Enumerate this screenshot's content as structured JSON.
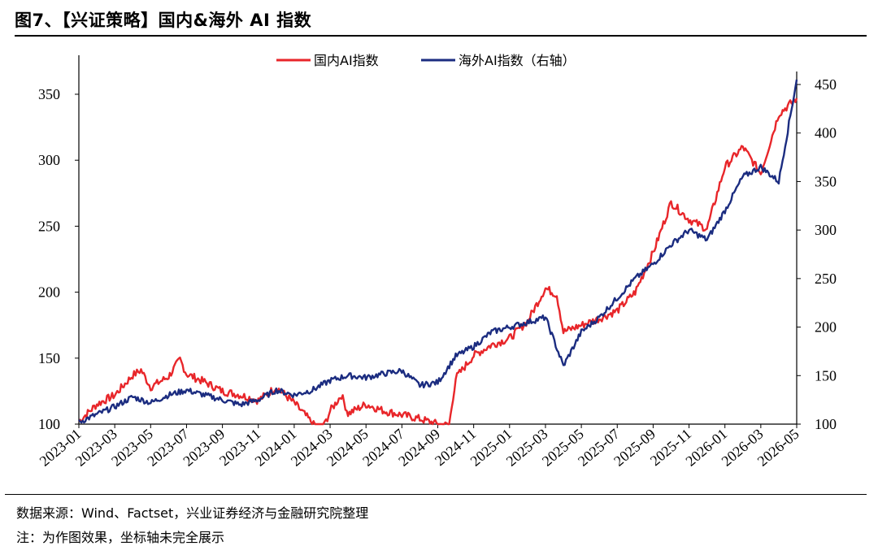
{
  "title": "图7、【兴证策略】国内&海外 AI 指数",
  "source": "数据来源：Wind、Factset，兴业证券经济与金融研究院整理",
  "note": "注：为作图效果，坐标轴未完全展示",
  "chart_data": {
    "type": "line",
    "legend_position": "top-center",
    "grid": false,
    "y_left": {
      "range": [
        100,
        360
      ],
      "ticks": [
        100,
        150,
        200,
        250,
        300,
        350
      ]
    },
    "y_right": {
      "range": [
        100,
        450
      ],
      "ticks": [
        100,
        150,
        200,
        250,
        300,
        350,
        400,
        450
      ]
    },
    "x_ticks": [
      "2023-01",
      "2023-03",
      "2023-05",
      "2023-07",
      "2023-09",
      "2023-11",
      "2024-01",
      "2024-03",
      "2024-05",
      "2024-07",
      "2024-09",
      "2024-11",
      "2025-01",
      "2025-03",
      "2025-05",
      "2025-07",
      "2025-09",
      "2025-11",
      "2026-01",
      "2026-03",
      "2026-05"
    ],
    "series": [
      {
        "name": "国内AI指数",
        "axis": "left",
        "color": "#e8262a",
        "points": [
          [
            "2023-01",
            102
          ],
          [
            "2023-02",
            115
          ],
          [
            "2023-03",
            122
          ],
          [
            "2023-04",
            137
          ],
          [
            "2023-04-15",
            141
          ],
          [
            "2023-05",
            128
          ],
          [
            "2023-06",
            136
          ],
          [
            "2023-06-20",
            149
          ],
          [
            "2023-07",
            138
          ],
          [
            "2023-08",
            132
          ],
          [
            "2023-09",
            125
          ],
          [
            "2023-10",
            122
          ],
          [
            "2023-11",
            118
          ],
          [
            "2023-12",
            128
          ],
          [
            "2024-01",
            116
          ],
          [
            "2024-02",
            101
          ],
          [
            "2024-02-15",
            92
          ],
          [
            "2024-03",
            110
          ],
          [
            "2024-03-20",
            122
          ],
          [
            "2024-04",
            108
          ],
          [
            "2024-05",
            115
          ],
          [
            "2024-06",
            110
          ],
          [
            "2024-07",
            107
          ],
          [
            "2024-08",
            104
          ],
          [
            "2024-09",
            100
          ],
          [
            "2024-09-20",
            99
          ],
          [
            "2024-10",
            135
          ],
          [
            "2024-11",
            152
          ],
          [
            "2024-12",
            160
          ],
          [
            "2025-01",
            165
          ],
          [
            "2025-02",
            178
          ],
          [
            "2025-03",
            203
          ],
          [
            "2025-03-20",
            198
          ],
          [
            "2025-04",
            170
          ],
          [
            "2025-05",
            175
          ],
          [
            "2025-06",
            180
          ],
          [
            "2025-07",
            186
          ],
          [
            "2025-08",
            200
          ],
          [
            "2025-09",
            230
          ],
          [
            "2025-10",
            268
          ],
          [
            "2025-11",
            255
          ],
          [
            "2025-12",
            248
          ],
          [
            "2026-01",
            295
          ],
          [
            "2026-02",
            310
          ],
          [
            "2026-03",
            290
          ],
          [
            "2026-04",
            335
          ],
          [
            "2026-05",
            347
          ]
        ]
      },
      {
        "name": "海外AI指数（右轴）",
        "axis": "right",
        "color": "#1b2c80",
        "points": [
          [
            "2023-01",
            102
          ],
          [
            "2023-02",
            110
          ],
          [
            "2023-03",
            118
          ],
          [
            "2023-04",
            128
          ],
          [
            "2023-05",
            122
          ],
          [
            "2023-06",
            130
          ],
          [
            "2023-07",
            135
          ],
          [
            "2023-08",
            130
          ],
          [
            "2023-09",
            125
          ],
          [
            "2023-10",
            120
          ],
          [
            "2023-11",
            125
          ],
          [
            "2023-12",
            135
          ],
          [
            "2024-01",
            130
          ],
          [
            "2024-02",
            135
          ],
          [
            "2024-03",
            145
          ],
          [
            "2024-04",
            150
          ],
          [
            "2024-05",
            148
          ],
          [
            "2024-06",
            152
          ],
          [
            "2024-07",
            155
          ],
          [
            "2024-08",
            140
          ],
          [
            "2024-09",
            143
          ],
          [
            "2024-10",
            170
          ],
          [
            "2024-11",
            180
          ],
          [
            "2024-12",
            195
          ],
          [
            "2025-01",
            200
          ],
          [
            "2025-02",
            205
          ],
          [
            "2025-03",
            210
          ],
          [
            "2025-04",
            160
          ],
          [
            "2025-05",
            195
          ],
          [
            "2025-06",
            210
          ],
          [
            "2025-07",
            230
          ],
          [
            "2025-08",
            250
          ],
          [
            "2025-09",
            265
          ],
          [
            "2025-10",
            285
          ],
          [
            "2025-11",
            300
          ],
          [
            "2025-12",
            290
          ],
          [
            "2026-01",
            320
          ],
          [
            "2026-02",
            355
          ],
          [
            "2026-03",
            365
          ],
          [
            "2026-04",
            350
          ],
          [
            "2026-05",
            455
          ]
        ]
      }
    ]
  }
}
